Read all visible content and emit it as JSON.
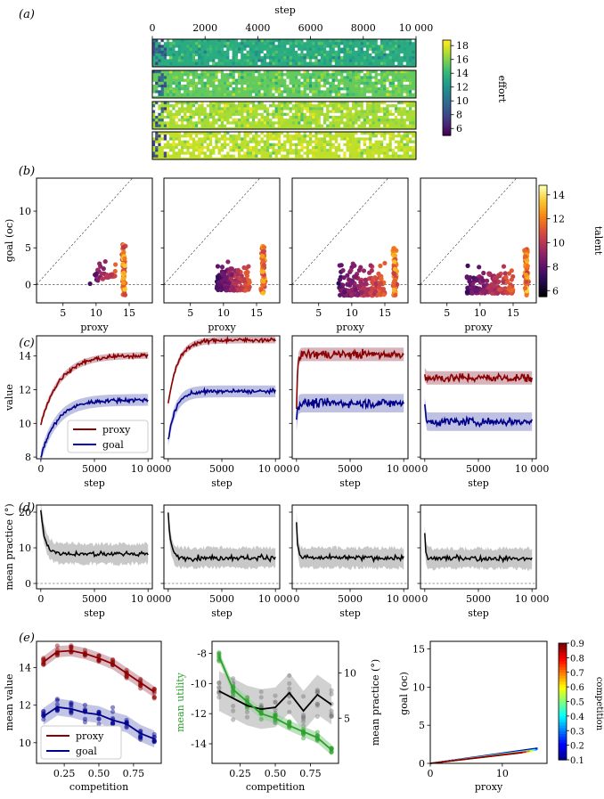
{
  "panel_labels": [
    "(a)",
    "(b)",
    "(c)",
    "(d)",
    "(e)"
  ],
  "chart_data": [
    {
      "panel": "a",
      "type": "heatmap",
      "title": "step",
      "x": {
        "ticks": [
          0,
          2000,
          4000,
          6000,
          8000,
          10000
        ],
        "tick_labels": [
          "0",
          "2000",
          "4000",
          "6000",
          "8000",
          "10 000"
        ],
        "range": [
          0,
          10000
        ]
      },
      "rows": 4,
      "row_mean_effort": [
        13.5,
        15.5,
        17.0,
        17.5
      ],
      "colorbar": {
        "label": "effort",
        "range": [
          5,
          18.8
        ],
        "ticks": [
          6,
          8,
          10,
          12,
          14,
          16,
          18
        ],
        "colormap": "viridis"
      }
    },
    {
      "panel": "b",
      "type": "scatter",
      "n_subplots": 4,
      "xlabel": "proxy",
      "ylabel": "goal (oc)",
      "xlim": [
        1,
        18.5
      ],
      "ylim": [
        -2.5,
        14.5
      ],
      "xticks": [
        5,
        10,
        15
      ],
      "yticks": [
        0,
        5,
        10
      ],
      "reference_lines": [
        "y = x - 1 (dashed)",
        "y = 0 (dashed)"
      ],
      "clusters": [
        {
          "subplot": 1,
          "main": {
            "x": 14.2,
            "y_range": [
              -1.5,
              5.5
            ]
          },
          "spread": {
            "x_range": [
              9,
              13
            ],
            "y_range": [
              0,
              3
            ]
          }
        },
        {
          "subplot": 2,
          "main": {
            "x": 16.0,
            "y_range": [
              -1.2,
              5.5
            ]
          },
          "spread": {
            "x_range": [
              9,
              14
            ],
            "y_range": [
              -0.8,
              3.2
            ]
          }
        },
        {
          "subplot": 3,
          "main": {
            "x": 16.5,
            "y_range": [
              -1.5,
              5.0
            ]
          },
          "spread": {
            "x_range": [
              8,
              15
            ],
            "y_range": [
              -1.5,
              3.3
            ]
          }
        },
        {
          "subplot": 4,
          "main": {
            "x": 17.0,
            "y_range": [
              -1.5,
              4.8
            ]
          },
          "spread": {
            "x_range": [
              8,
              15
            ],
            "y_range": [
              -1.2,
              3.0
            ]
          }
        }
      ],
      "colorbar": {
        "label": "talent",
        "range": [
          5.5,
          14.8
        ],
        "ticks": [
          6,
          8,
          10,
          12,
          14
        ],
        "colormap": "plasma"
      }
    },
    {
      "panel": "c",
      "type": "line",
      "n_subplots": 4,
      "xlabel": "step",
      "ylabel": "value",
      "xlim": [
        -400,
        10400
      ],
      "ylim": [
        7.9,
        15.2
      ],
      "xticks": [
        0,
        5000,
        10000
      ],
      "xtick_labels": [
        "0",
        "5000",
        "10 000"
      ],
      "yticks": [
        8,
        10,
        12,
        14
      ],
      "legend": [
        "proxy",
        "goal"
      ],
      "series": [
        {
          "subplot": 1,
          "proxy": {
            "start": 10.0,
            "final": 14.05,
            "tau": 1800
          },
          "goal": {
            "start": 8.0,
            "final": 11.4,
            "tau": 1500
          }
        },
        {
          "subplot": 2,
          "proxy": {
            "start": 11.2,
            "final": 14.95,
            "tau": 900
          },
          "goal": {
            "start": 9.0,
            "final": 11.9,
            "tau": 700
          }
        },
        {
          "subplot": 3,
          "proxy": {
            "start": 10.8,
            "final": 14.1,
            "tau": 80
          },
          "goal": {
            "start": 10.1,
            "final": 11.2,
            "tau": 80
          }
        },
        {
          "subplot": 4,
          "proxy": {
            "start": 12.9,
            "final": 12.7,
            "tau": 60
          },
          "goal": {
            "start": 11.0,
            "final": 10.1,
            "tau": 60
          }
        }
      ]
    },
    {
      "panel": "d",
      "type": "line",
      "n_subplots": 4,
      "xlabel": "step",
      "ylabel": "mean practice (°)",
      "xlim": [
        -400,
        10400
      ],
      "ylim": [
        -1.5,
        22
      ],
      "xticks": [
        0,
        5000,
        10000
      ],
      "xtick_labels": [
        "0",
        "5000",
        "10 000"
      ],
      "yticks": [
        0,
        10,
        20
      ],
      "series": [
        {
          "subplot": 1,
          "start": 20.5,
          "final": 8.3,
          "tau": 400
        },
        {
          "subplot": 2,
          "start": 19.0,
          "final": 7.2,
          "tau": 250
        },
        {
          "subplot": 3,
          "start": 17.5,
          "final": 7.2,
          "tau": 120
        },
        {
          "subplot": 4,
          "start": 14.0,
          "final": 7.0,
          "tau": 80
        }
      ]
    },
    {
      "panel": "e1",
      "type": "line",
      "xlabel": "competition",
      "ylabel": "mean value",
      "x": [
        0.1,
        0.2,
        0.3,
        0.4,
        0.5,
        0.6,
        0.7,
        0.8,
        0.9
      ],
      "xlim": [
        0.05,
        0.95
      ],
      "ylim": [
        8.9,
        15.4
      ],
      "xticks": [
        0.25,
        0.5,
        0.75
      ],
      "xtick_labels": [
        "0.25",
        "0.50",
        "0.75"
      ],
      "yticks": [
        10,
        12,
        14
      ],
      "legend": [
        "proxy",
        "goal"
      ],
      "series": [
        {
          "name": "proxy",
          "values": [
            14.3,
            14.85,
            14.9,
            14.75,
            14.5,
            14.2,
            13.7,
            13.2,
            12.7
          ]
        },
        {
          "name": "goal",
          "values": [
            11.4,
            11.9,
            11.8,
            11.6,
            11.5,
            11.2,
            11.0,
            10.5,
            10.2
          ]
        }
      ]
    },
    {
      "panel": "e2",
      "type": "line",
      "xlabel": "competition",
      "ylabel": "mean utility",
      "ylabel_right": "mean practice (°)",
      "x": [
        0.1,
        0.2,
        0.3,
        0.4,
        0.5,
        0.6,
        0.7,
        0.8,
        0.9
      ],
      "xlim": [
        0.05,
        0.95
      ],
      "ylim": [
        -15.3,
        -7.2
      ],
      "ylim_right": [
        0,
        13.5
      ],
      "xticks": [
        0.25,
        0.5,
        0.75
      ],
      "xtick_labels": [
        "0.25",
        "0.50",
        "0.75"
      ],
      "yticks": [
        -14,
        -12,
        -10,
        -8
      ],
      "yticks_right": [
        5,
        10
      ],
      "series": [
        {
          "name": "mean utility",
          "axis": "left",
          "values": [
            -8.2,
            -10.4,
            -11.2,
            -12.0,
            -12.3,
            -12.8,
            -13.2,
            -13.6,
            -14.4
          ]
        },
        {
          "name": "mean practice",
          "axis": "right",
          "values": [
            8.0,
            7.2,
            6.4,
            6.0,
            6.2,
            7.8,
            5.8,
            7.6,
            6.5
          ]
        }
      ]
    },
    {
      "panel": "e3",
      "type": "line",
      "xlabel": "proxy",
      "ylabel": "goal (oc)",
      "xlim": [
        0,
        16.2
      ],
      "ylim": [
        0,
        16
      ],
      "xticks": [
        0,
        10
      ],
      "yticks": [
        0,
        5,
        10,
        15
      ],
      "series_by_competition": [
        0.1,
        0.2,
        0.3,
        0.4,
        0.5,
        0.6,
        0.7,
        0.8,
        0.9
      ],
      "endpoints": [
        [
          14.9,
          2.0
        ],
        [
          14.9,
          1.9
        ],
        [
          14.8,
          1.8
        ],
        [
          14.6,
          1.8
        ],
        [
          14.4,
          1.7
        ],
        [
          14.2,
          1.6
        ],
        [
          13.8,
          1.6
        ],
        [
          13.3,
          1.5
        ],
        [
          12.8,
          1.4
        ]
      ],
      "colorbar": {
        "label": "competition",
        "range": [
          0.1,
          0.9
        ],
        "ticks": [
          0.1,
          0.2,
          0.3,
          0.4,
          0.5,
          0.6,
          0.7,
          0.8,
          0.9
        ],
        "tick_labels": [
          "0.1",
          "0.2",
          "0.3",
          "0.4",
          "0.5",
          "0.6",
          "0.7",
          "0.8",
          "0.9"
        ],
        "colormap": "jet"
      }
    }
  ],
  "colors": {
    "proxy": "#8b0000",
    "goal": "#00008b",
    "utility": "#2ca02c",
    "practice": "#000000"
  }
}
